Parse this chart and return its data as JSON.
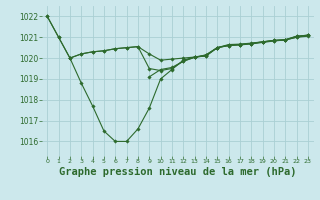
{
  "background_color": "#cce8ec",
  "grid_color": "#aacfd4",
  "line_color": "#2d6a2d",
  "title": "Graphe pression niveau de la mer (hPa)",
  "title_fontsize": 7.5,
  "xlim": [
    -0.5,
    23.5
  ],
  "ylim": [
    1015.3,
    1022.5
  ],
  "yticks": [
    1016,
    1017,
    1018,
    1019,
    1020,
    1021,
    1022
  ],
  "xticks": [
    0,
    1,
    2,
    3,
    4,
    5,
    6,
    7,
    8,
    9,
    10,
    11,
    12,
    13,
    14,
    15,
    16,
    17,
    18,
    19,
    20,
    21,
    22,
    23
  ],
  "series": [
    {
      "x": [
        0,
        1,
        2,
        3,
        4,
        5,
        6,
        7,
        8,
        9,
        10,
        11,
        12,
        13,
        14,
        15,
        16,
        17,
        18,
        19,
        20,
        21,
        22,
        23
      ],
      "y": [
        1022.0,
        1021.0,
        1020.0,
        1020.2,
        1020.3,
        1020.35,
        1020.45,
        1020.5,
        1020.55,
        1020.2,
        1019.9,
        1019.95,
        1020.0,
        1020.05,
        1020.1,
        1020.5,
        1020.6,
        1020.65,
        1020.7,
        1020.78,
        1020.85,
        1020.88,
        1021.05,
        1021.1
      ]
    },
    {
      "x": [
        0,
        1,
        2,
        3,
        4,
        5,
        6,
        7,
        8,
        9,
        10,
        11,
        12,
        13,
        14,
        15,
        16,
        17,
        18,
        19,
        20,
        21,
        22,
        23
      ],
      "y": [
        1022.0,
        1021.0,
        1020.0,
        1018.8,
        1017.7,
        1016.5,
        1016.0,
        1016.0,
        1016.6,
        1017.6,
        1019.0,
        1019.45,
        1019.9,
        1020.05,
        1020.1,
        1020.5,
        1020.65,
        1020.67,
        1020.72,
        1020.78,
        1020.85,
        1020.88,
        1021.05,
        1021.1
      ]
    },
    {
      "x": [
        2,
        3,
        4,
        5,
        6,
        7,
        8,
        9,
        10,
        11,
        12,
        13,
        14,
        15,
        16,
        17,
        18,
        19,
        20,
        21,
        22,
        23
      ],
      "y": [
        1020.0,
        1020.2,
        1020.3,
        1020.35,
        1020.45,
        1020.5,
        1020.55,
        1019.5,
        1019.4,
        1019.5,
        1019.85,
        1020.05,
        1020.15,
        1020.5,
        1020.62,
        1020.65,
        1020.7,
        1020.77,
        1020.84,
        1020.87,
        1021.0,
        1021.1
      ]
    },
    {
      "x": [
        9,
        10,
        11,
        12,
        13,
        14,
        15,
        16,
        17,
        18,
        19,
        20,
        21,
        22,
        23
      ],
      "y": [
        1019.1,
        1019.45,
        1019.55,
        1019.85,
        1020.03,
        1020.15,
        1020.5,
        1020.6,
        1020.63,
        1020.68,
        1020.75,
        1020.82,
        1020.87,
        1021.0,
        1021.05
      ]
    }
  ]
}
